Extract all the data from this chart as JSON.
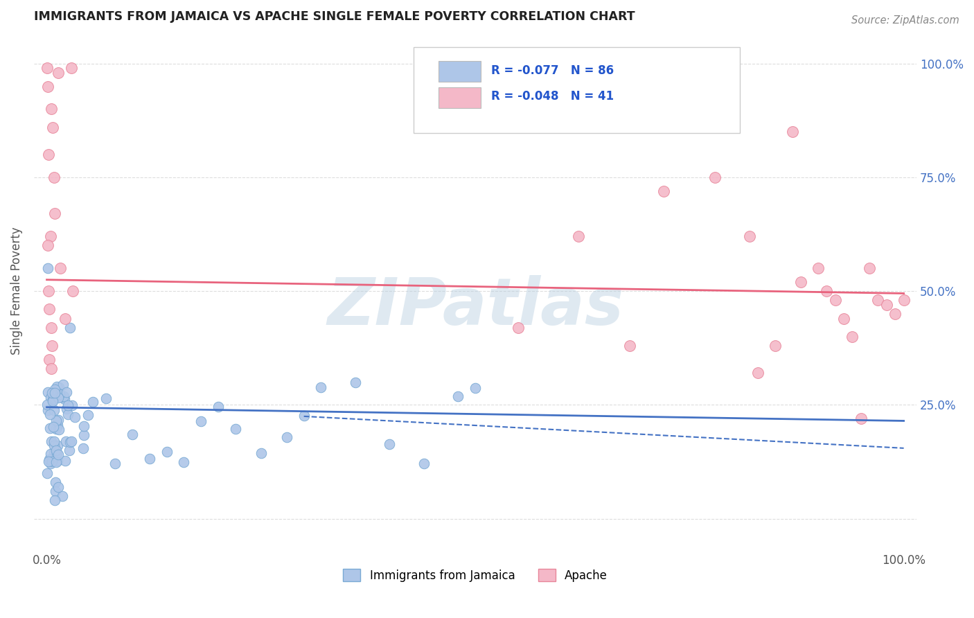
{
  "title": "IMMIGRANTS FROM JAMAICA VS APACHE SINGLE FEMALE POVERTY CORRELATION CHART",
  "source": "Source: ZipAtlas.com",
  "ylabel": "Single Female Poverty",
  "legend_entries": [
    {
      "label": "Immigrants from Jamaica",
      "R": "-0.077",
      "N": "86",
      "color": "#aec6e8",
      "edge_color": "#7aaad4",
      "line_color": "#4472c4"
    },
    {
      "label": "Apache",
      "R": "-0.048",
      "N": "41",
      "color": "#f4b8c8",
      "edge_color": "#e8869a",
      "line_color": "#e8637d"
    }
  ],
  "blue_line": {
    "x": [
      0.0,
      1.0
    ],
    "y": [
      0.245,
      0.215
    ]
  },
  "blue_dash": {
    "x": [
      0.3,
      1.0
    ],
    "y": [
      0.225,
      0.155
    ]
  },
  "pink_line": {
    "x": [
      0.0,
      1.0
    ],
    "y": [
      0.525,
      0.495
    ]
  },
  "watermark": "ZIPatlas",
  "background_color": "#ffffff",
  "grid_color": "#dddddd",
  "xlim": [
    -0.015,
    1.015
  ],
  "ylim": [
    -0.07,
    1.07
  ],
  "yticks": [
    0.0,
    0.25,
    0.5,
    0.75,
    1.0
  ],
  "ytick_labels_right": [
    "",
    "25.0%",
    "50.0%",
    "75.0%",
    "100.0%"
  ],
  "xtick_labels": [
    "0.0%",
    "100.0%"
  ],
  "bottom_legend": [
    "Immigrants from Jamaica",
    "Apache"
  ]
}
